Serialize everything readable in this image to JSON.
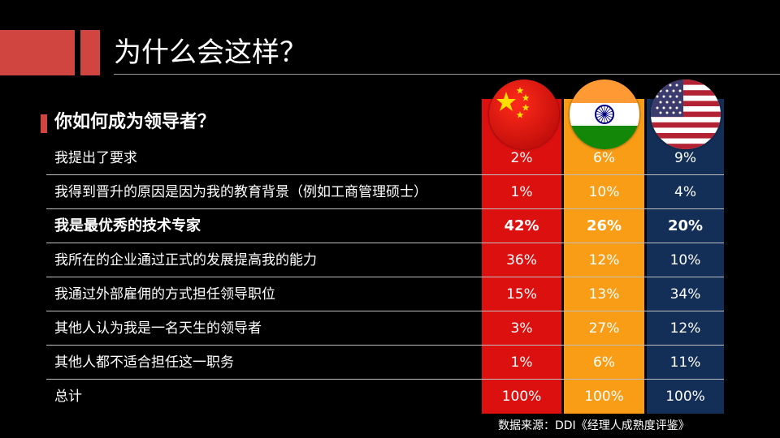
{
  "slide": {
    "title": "为什么会这样？",
    "section_heading": "你如何成为领导者？",
    "source": "数据来源：DDI《经理人成熟度评鉴》"
  },
  "columns": [
    {
      "name": "china",
      "flag_icon": "china-flag-icon",
      "color": "#dd1010"
    },
    {
      "name": "india",
      "flag_icon": "india-flag-icon",
      "color": "#f99d16"
    },
    {
      "name": "usa",
      "flag_icon": "usa-flag-icon",
      "color": "#132f57"
    }
  ],
  "colors": {
    "accent": "#d0453f",
    "background": "#000000"
  },
  "rows": [
    {
      "label": "我提出了要求",
      "china": "2%",
      "india": "6%",
      "usa": "9%"
    },
    {
      "label": "我得到晋升的原因是因为我的教育背景（例如工商管理硕士）",
      "china": "1%",
      "india": "10%",
      "usa": "4%"
    },
    {
      "label": "我是最优秀的技术专家",
      "china": "42%",
      "india": "26%",
      "usa": "20%",
      "bold": true
    },
    {
      "label": "我所在的企业通过正式的发展提高我的能力",
      "china": "36%",
      "india": "12%",
      "usa": "10%"
    },
    {
      "label": "我通过外部雇佣的方式担任领导职位",
      "china": "15%",
      "india": "13%",
      "usa": "34%"
    },
    {
      "label": "其他人认为我是一名天生的领导者",
      "china": "3%",
      "india": "27%",
      "usa": "12%"
    },
    {
      "label": "其他人都不适合担任这一职务",
      "china": "1%",
      "india": "6%",
      "usa": "11%"
    },
    {
      "label": "总计",
      "china": "100%",
      "india": "100%",
      "usa": "100%"
    }
  ]
}
